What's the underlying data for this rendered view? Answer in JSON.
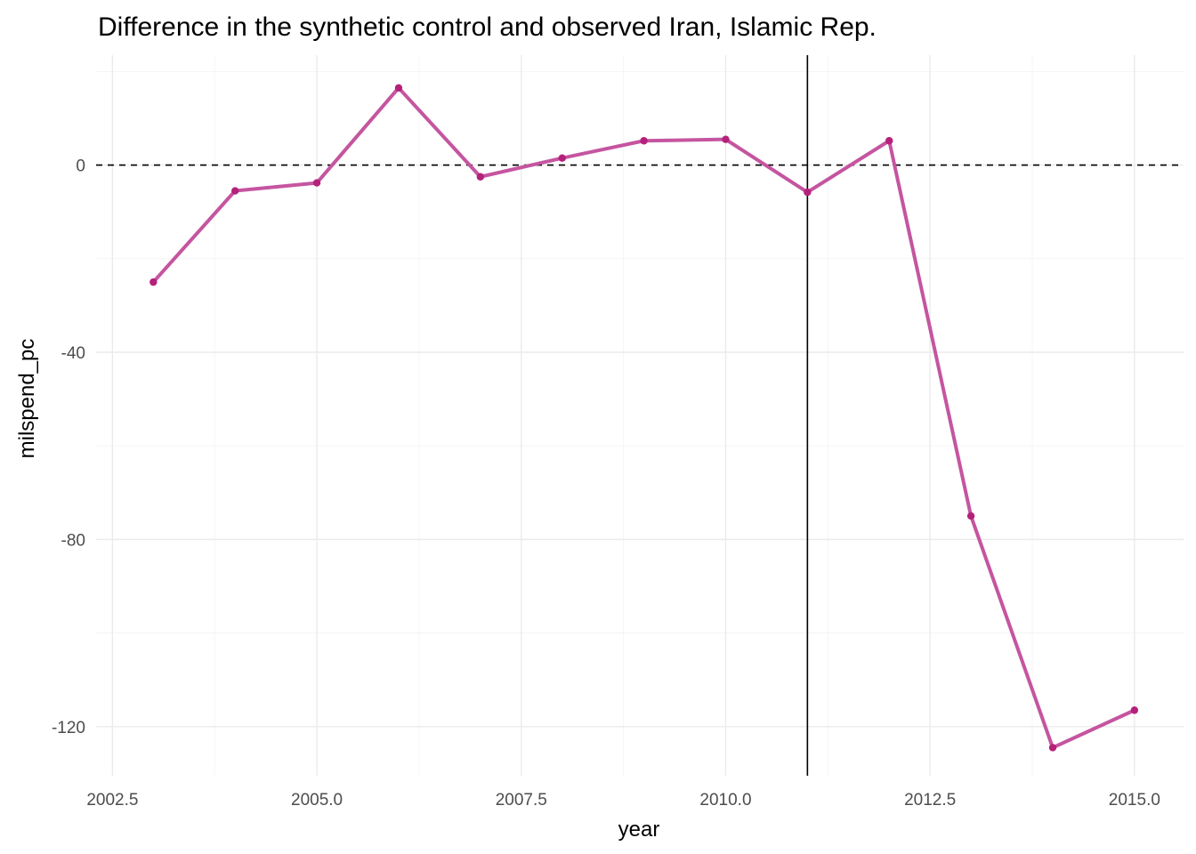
{
  "chart_data": {
    "type": "line",
    "title": "Difference in the synthetic control and observed Iran, Islamic Rep.",
    "xlabel": "year",
    "ylabel": "milspend_pc",
    "x": [
      2003,
      2004,
      2005,
      2006,
      2007,
      2008,
      2009,
      2010,
      2011,
      2012,
      2013,
      2014,
      2015
    ],
    "series": [
      {
        "values": [
          -25,
          -5.5,
          -3.8,
          16.5,
          -2.5,
          1.5,
          5.2,
          5.5,
          -5.8,
          5.2,
          -75,
          -124.5,
          -116.5
        ]
      }
    ],
    "xlim": [
      2002.3,
      2015.6
    ],
    "ylim": [
      -130.5,
      23.5
    ],
    "xticks": [
      2002.5,
      2005.0,
      2007.5,
      2010.0,
      2012.5,
      2015.0
    ],
    "xtick_labels": [
      "2002.5",
      "2005.0",
      "2007.5",
      "2010.0",
      "2012.5",
      "2015.0"
    ],
    "yticks": [
      -120,
      -80,
      -40,
      0
    ],
    "ytick_labels": [
      "-120",
      "-80",
      "-40",
      "0"
    ],
    "reference_hline": 0,
    "reference_vline": 2011,
    "grid": true,
    "legend": "none",
    "line_color": "#c555a0",
    "point_color": "#b5217a"
  }
}
